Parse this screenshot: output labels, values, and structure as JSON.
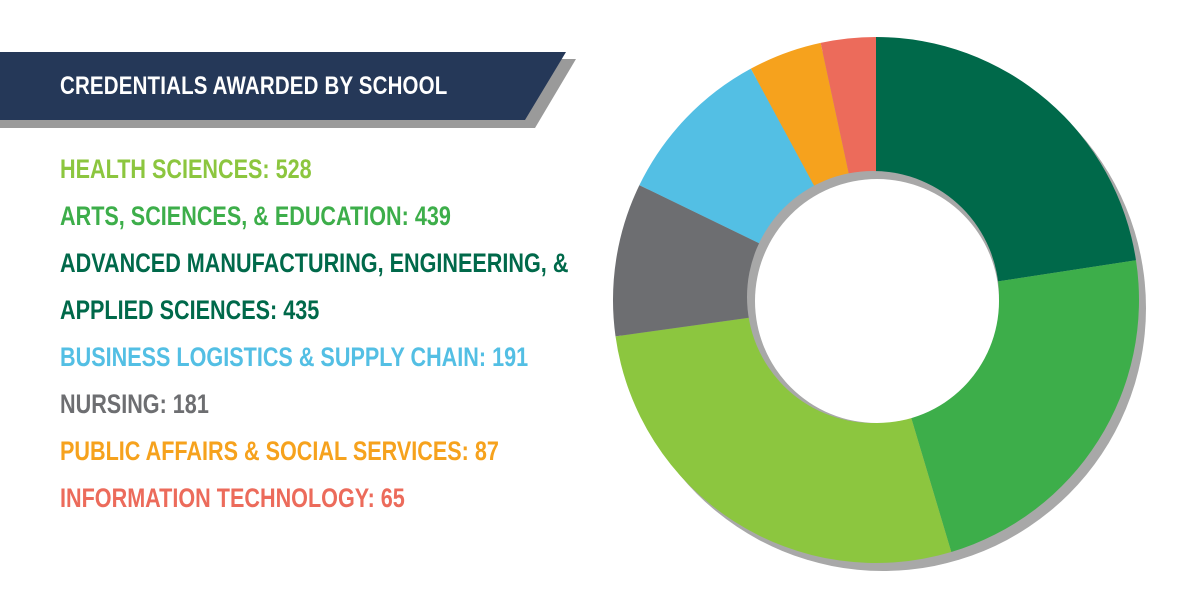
{
  "header": {
    "title": "CREDENTIALS AWARDED BY SCHOOL",
    "banner_color": "#253858",
    "shadow_color": "#9a9a9a"
  },
  "legend": {
    "items": [
      {
        "label": "HEALTH SCIENCES: 528",
        "color": "#8CC63F"
      },
      {
        "label": "ARTS, SCIENCES, & EDUCATION: 439",
        "color": "#3DAE4A"
      },
      {
        "label": "ADVANCED MANUFACTURING, ENGINEERING, &",
        "color": "#00694A"
      },
      {
        "label": "APPLIED SCIENCES: 435",
        "color": "#00694A"
      },
      {
        "label": "BUSINESS LOGISTICS & SUPPLY CHAIN: 191",
        "color": "#53BFE4"
      },
      {
        "label": "NURSING: 181",
        "color": "#6D6E71"
      },
      {
        "label": "PUBLIC AFFAIRS & SOCIAL SERVICES: 87",
        "color": "#F6A21D"
      },
      {
        "label": "INFORMATION TECHNOLOGY: 65",
        "color": "#EC6B5B"
      }
    ]
  },
  "chart_data": {
    "type": "pie",
    "donut": true,
    "title": "CREDENTIALS AWARDED BY SCHOOL",
    "categories": [
      "ADVANCED MANUFACTURING, ENGINEERING, & APPLIED SCIENCES",
      "ARTS, SCIENCES, & EDUCATION",
      "HEALTH SCIENCES",
      "NURSING",
      "BUSINESS LOGISTICS & SUPPLY CHAIN",
      "PUBLIC AFFAIRS & SOCIAL SERVICES",
      "INFORMATION TECHNOLOGY"
    ],
    "values": [
      435,
      439,
      528,
      181,
      191,
      87,
      65
    ],
    "colors": [
      "#00694A",
      "#3DAE4A",
      "#8CC63F",
      "#6D6E71",
      "#53BFE4",
      "#F6A21D",
      "#EC6B5B"
    ],
    "start": "12 o'clock",
    "direction": "clockwise",
    "shadow_color": "#a8a8a8"
  }
}
